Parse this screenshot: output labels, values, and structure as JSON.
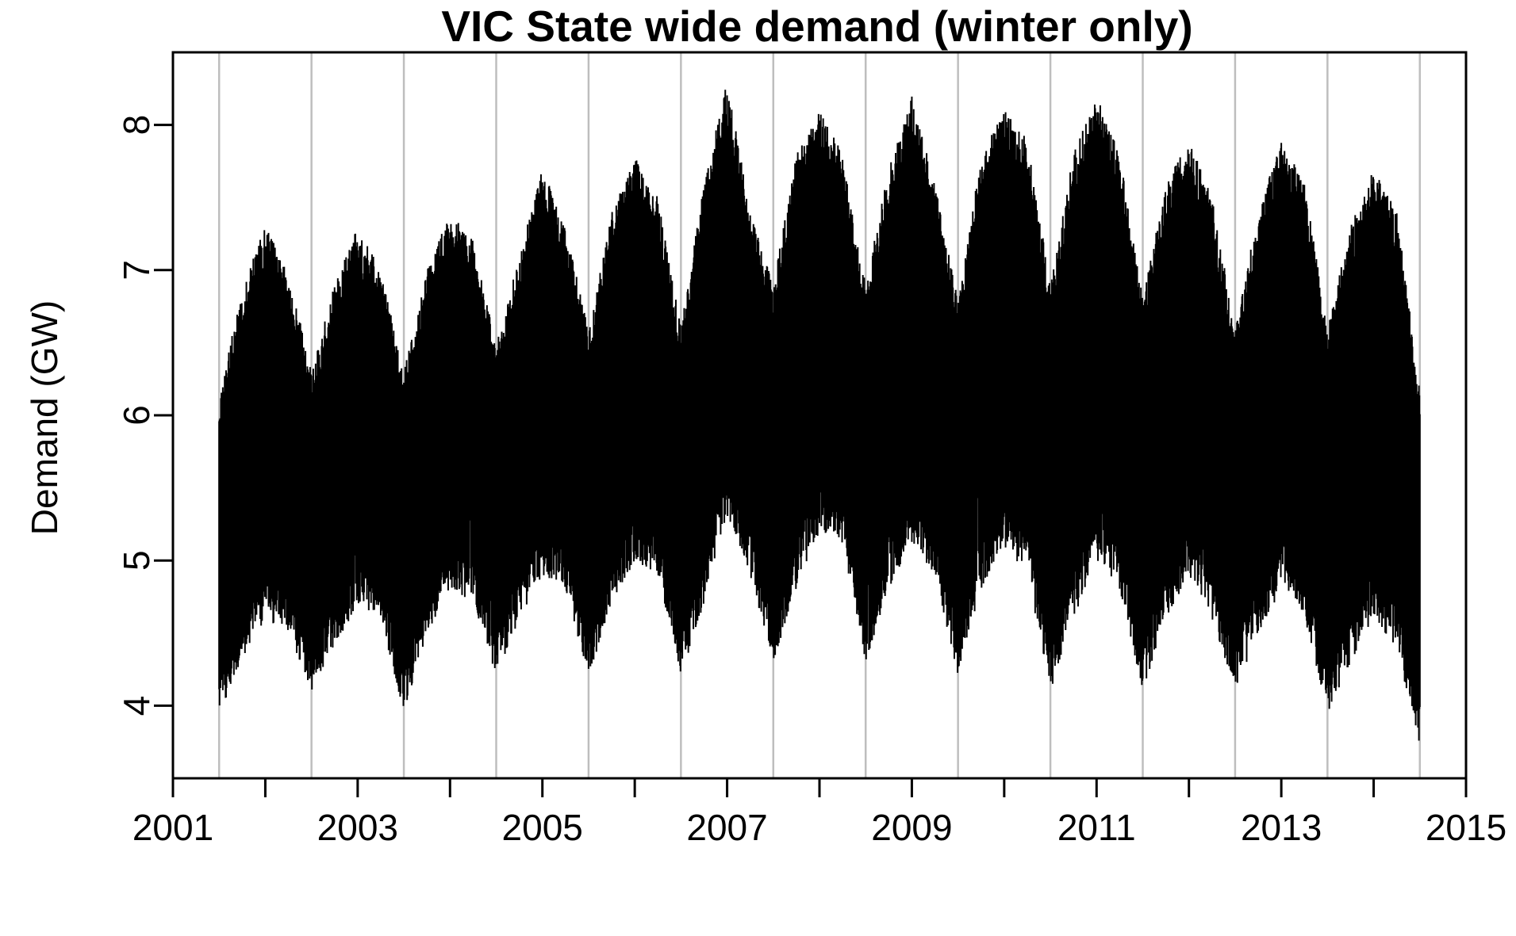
{
  "chart_data": {
    "type": "line",
    "title": "VIC State wide demand (winter only)",
    "xlabel": "",
    "ylabel": "Demand (GW)",
    "x_ticks": [
      "2001",
      "2003",
      "2005",
      "2007",
      "2009",
      "2011",
      "2013",
      "2015"
    ],
    "y_ticks": [
      "4",
      "5",
      "6",
      "7",
      "8"
    ],
    "xlim": [
      2001,
      2015
    ],
    "ylim": [
      3.5,
      8.5
    ],
    "grid": "vertical lines at winter boundaries",
    "colors": {
      "series": "#000000",
      "grid": "#bebebe",
      "axis": "#000000"
    },
    "grid_x": [
      2001.5,
      2002.5,
      2003.5,
      2004.5,
      2005.5,
      2006.5,
      2007.5,
      2008.5,
      2009.5,
      2010.5,
      2011.5,
      2012.5,
      2013.5,
      2014.5
    ],
    "series": [
      {
        "values_envelope": {
          "x": [
            2001.5,
            2001.75,
            2002.0,
            2002.25,
            2002.5,
            2002.75,
            2003.0,
            2003.25,
            2003.5,
            2003.75,
            2004.0,
            2004.25,
            2004.5,
            2004.75,
            2005.0,
            2005.25,
            2005.5,
            2005.75,
            2006.0,
            2006.25,
            2006.5,
            2006.75,
            2007.0,
            2007.25,
            2007.5,
            2007.75,
            2008.0,
            2008.25,
            2008.5,
            2008.75,
            2009.0,
            2009.25,
            2009.5,
            2009.75,
            2010.0,
            2010.25,
            2010.5,
            2010.75,
            2011.0,
            2011.25,
            2011.5,
            2011.75,
            2012.0,
            2012.25,
            2012.5,
            2012.75,
            2013.0,
            2013.25,
            2013.5,
            2013.75,
            2014.0,
            2014.25,
            2014.5
          ],
          "max": [
            6.1,
            6.9,
            7.3,
            7.0,
            6.3,
            6.9,
            7.3,
            7.0,
            6.3,
            7.0,
            7.4,
            7.2,
            6.5,
            7.1,
            7.7,
            7.3,
            6.6,
            7.4,
            7.8,
            7.5,
            6.6,
            7.6,
            8.3,
            7.4,
            6.9,
            7.8,
            8.1,
            7.8,
            6.9,
            7.7,
            8.2,
            7.6,
            6.8,
            7.8,
            8.1,
            7.9,
            6.9,
            7.8,
            8.2,
            7.8,
            6.8,
            7.6,
            7.9,
            7.5,
            6.6,
            7.4,
            7.9,
            7.6,
            6.6,
            7.3,
            7.7,
            7.4,
            6.2
          ],
          "min": [
            3.95,
            4.3,
            4.6,
            4.5,
            4.1,
            4.4,
            4.7,
            4.6,
            3.95,
            4.5,
            4.8,
            4.7,
            4.2,
            4.6,
            4.9,
            4.8,
            4.2,
            4.7,
            5.0,
            4.9,
            4.2,
            4.7,
            5.3,
            4.9,
            4.3,
            4.8,
            5.2,
            5.1,
            4.3,
            4.8,
            5.1,
            4.9,
            4.2,
            4.8,
            5.1,
            4.9,
            4.1,
            4.6,
            5.0,
            4.8,
            4.1,
            4.6,
            4.9,
            4.6,
            4.1,
            4.5,
            4.8,
            4.6,
            3.95,
            4.3,
            4.6,
            4.4,
            3.7
          ]
        }
      }
    ]
  }
}
